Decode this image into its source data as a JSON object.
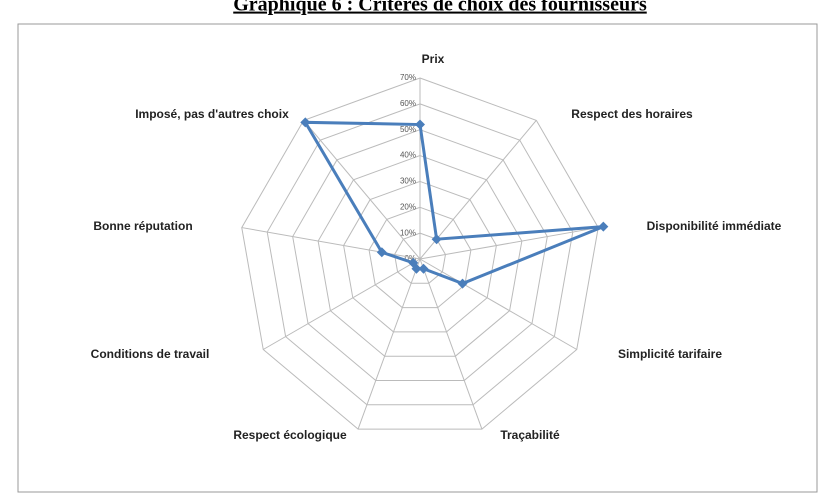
{
  "chart_data": {
    "type": "radar",
    "title": "Graphique 6 : Critères de choix des fournisseurs",
    "categories": [
      "Prix",
      "Respect des horaires",
      "Disponibilité immédiate",
      "Simplicité tarifaire",
      "Traçabilité",
      "Respect écologique",
      "Conditions de travail",
      "Bonne réputation",
      "Imposé, pas d'autres choix"
    ],
    "series": [
      {
        "color": "#4a7ebb",
        "values": [
          52,
          10,
          72,
          19,
          4,
          4,
          3,
          15,
          69
        ]
      }
    ],
    "ylim": [
      0,
      70
    ],
    "yticks": [
      {
        "value": 0,
        "label": "0%"
      },
      {
        "value": 10,
        "label": "10%"
      },
      {
        "value": 20,
        "label": "20%"
      },
      {
        "value": 30,
        "label": "30%"
      },
      {
        "value": 40,
        "label": "40%"
      },
      {
        "value": 50,
        "label": "50%"
      },
      {
        "value": 60,
        "label": "60%"
      },
      {
        "value": 70,
        "label": "70%"
      }
    ],
    "grid": true
  }
}
